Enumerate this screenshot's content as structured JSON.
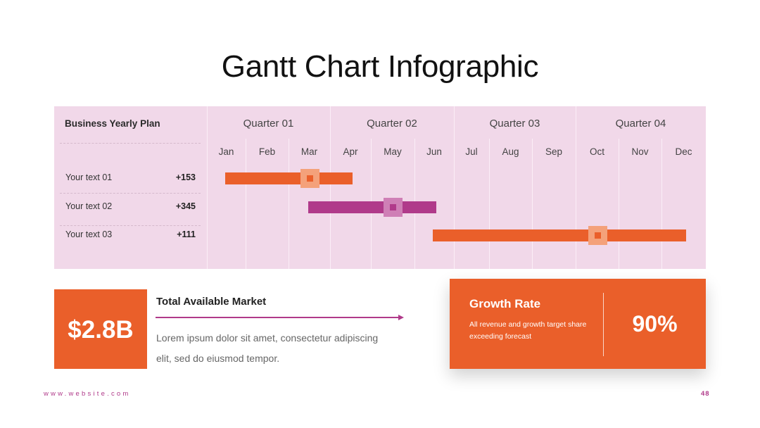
{
  "title": "Gantt Chart Infographic",
  "gantt": {
    "plan_label": "Business Yearly Plan",
    "quarters": [
      "Quarter 01",
      "Quarter 02",
      "Quarter 03",
      "Quarter 04"
    ],
    "months": [
      "Jan",
      "Feb",
      "Mar",
      "Apr",
      "May",
      "Jun",
      "Jul",
      "Aug",
      "Sep",
      "Oct",
      "Nov",
      "Dec"
    ],
    "rows": [
      {
        "label": "Your text 01",
        "value": "+153",
        "start_month": "Jan",
        "end_month": "Apr",
        "marker_month": "Mar",
        "color": "#ea5f2a",
        "marker_color": "#f4a17a",
        "marker_dot_color": "#ea5f2a"
      },
      {
        "label": "Your text 02",
        "value": "+345",
        "start_month": "Mar",
        "end_month": "Jun",
        "marker_month": "May",
        "color": "#b03a8a",
        "marker_color": "#cf7fb6",
        "marker_dot_color": "#b03a8a"
      },
      {
        "label": "Your text 03",
        "value": "+111",
        "start_month": "Jun",
        "end_month": "Dec",
        "marker_month": "Oct",
        "color": "#ea5f2a",
        "marker_color": "#f4a17a",
        "marker_dot_color": "#ea5f2a"
      }
    ]
  },
  "tam": {
    "value": "$2.8B",
    "title": "Total Available Market",
    "description": "Lorem ipsum dolor sit amet, consectetur adipiscing elit, sed do eiusmod tempor."
  },
  "growth": {
    "title": "Growth Rate",
    "description": "All revenue and growth target share exceeding forecast",
    "value": "90%"
  },
  "footer": {
    "website": "www.website.com",
    "page_number": "48"
  },
  "colors": {
    "accent_orange": "#ea5f2a",
    "accent_magenta": "#b03a8a",
    "panel_bg": "#f1d8e9"
  }
}
